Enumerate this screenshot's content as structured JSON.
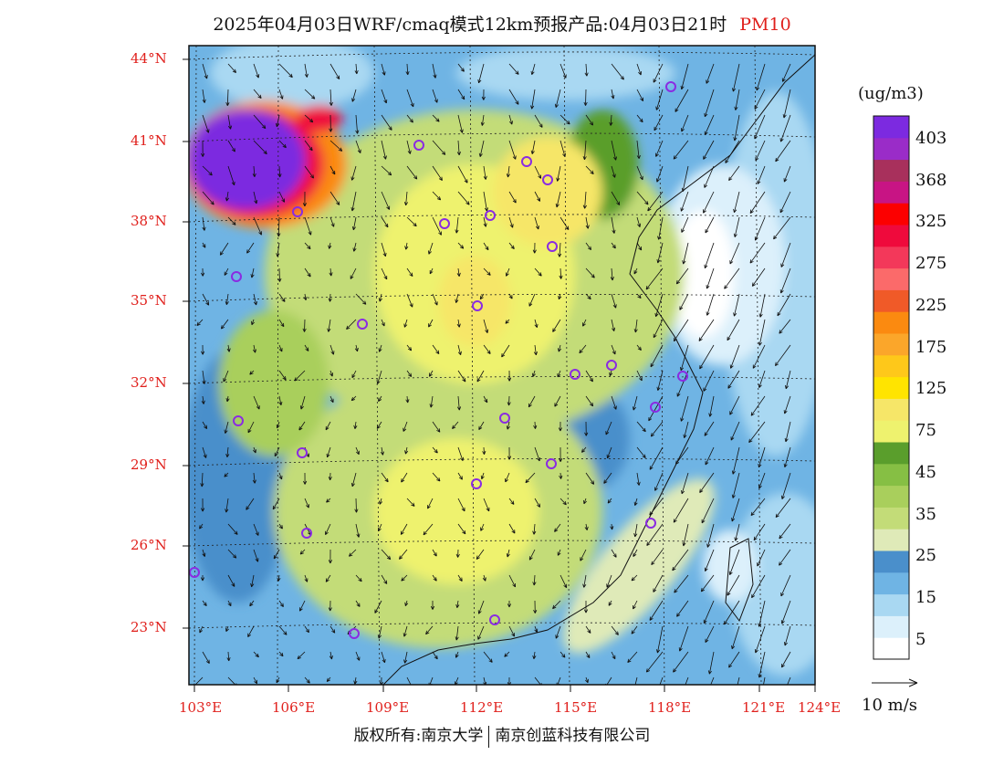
{
  "title": {
    "main": "2025年04月03日WRF/cmaq模式12km预报产品:04月03日21时",
    "pollutant": "PM10"
  },
  "axes": {
    "lat_labels": [
      "44°N",
      "41°N",
      "38°N",
      "35°N",
      "32°N",
      "29°N",
      "26°N",
      "23°N"
    ],
    "lon_labels": [
      "103°E",
      "106°E",
      "109°E",
      "112°E",
      "115°E",
      "118°E",
      "121°E",
      "124°E"
    ]
  },
  "colorbar": {
    "unit": "(ug/m3)",
    "labels": [
      "403",
      "368",
      "325",
      "275",
      "225",
      "175",
      "125",
      "75",
      "45",
      "35",
      "25",
      "15",
      "5"
    ],
    "colors": [
      "#ffffff",
      "#dcf0fb",
      "#a9d8f2",
      "#6fb4e4",
      "#4a8fcb",
      "#dfeab8",
      "#c3dc78",
      "#a9cf5c",
      "#86bf44",
      "#5a9e2c",
      "#eef26e",
      "#f6e668",
      "#ffe400",
      "#fec81a",
      "#fba62a",
      "#fb8a10",
      "#f05a28",
      "#fb6a6a",
      "#f3385a",
      "#ef0a3c",
      "#fc0000",
      "#c81484",
      "#a8305c",
      "#9a2cc8",
      "#7c2ae0"
    ]
  },
  "vector_legend": "10 m/s",
  "copyright": {
    "left": "版权所有:南京大学",
    "right": "南京创蓝科技有限公司"
  }
}
